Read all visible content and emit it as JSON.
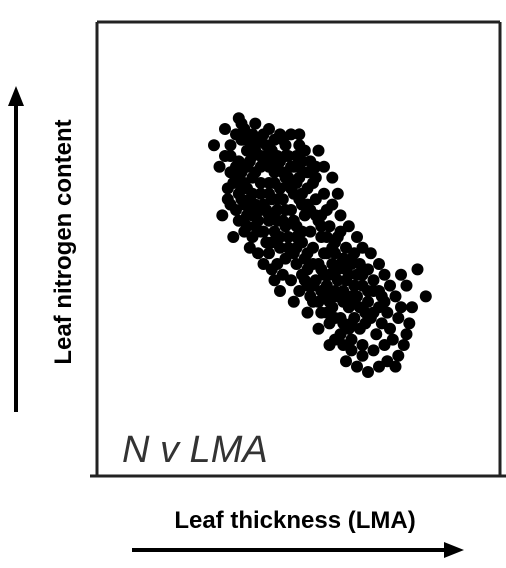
{
  "chart_data": {
    "type": "scatter",
    "title": "",
    "annotation": "N v LMA",
    "xlabel": "Leaf thickness (LMA)",
    "ylabel": "Leaf nitrogen content",
    "xlim": [
      0,
      100
    ],
    "ylim": [
      0,
      100
    ],
    "grid": false,
    "legend": "none",
    "point_color": "#000000",
    "series": [
      {
        "points": [
          [
            20,
            80
          ],
          [
            22,
            84
          ],
          [
            24,
            88
          ],
          [
            26,
            86
          ],
          [
            27,
            90
          ],
          [
            30,
            88
          ],
          [
            28,
            82
          ],
          [
            25,
            78
          ],
          [
            22,
            74
          ],
          [
            24,
            72
          ],
          [
            28,
            76
          ],
          [
            30,
            80
          ],
          [
            32,
            85
          ],
          [
            34,
            88
          ],
          [
            36,
            90
          ],
          [
            38,
            86
          ],
          [
            40,
            88
          ],
          [
            42,
            84
          ],
          [
            35,
            80
          ],
          [
            33,
            76
          ],
          [
            30,
            72
          ],
          [
            28,
            68
          ],
          [
            26,
            64
          ],
          [
            24,
            60
          ],
          [
            22,
            62
          ],
          [
            25,
            56
          ],
          [
            28,
            58
          ],
          [
            31,
            62
          ],
          [
            33,
            66
          ],
          [
            36,
            70
          ],
          [
            38,
            74
          ],
          [
            40,
            78
          ],
          [
            43,
            80
          ],
          [
            45,
            76
          ],
          [
            47,
            72
          ],
          [
            44,
            68
          ],
          [
            41,
            64
          ],
          [
            39,
            60
          ],
          [
            36,
            56
          ],
          [
            33,
            52
          ],
          [
            30,
            50
          ],
          [
            35,
            48
          ],
          [
            38,
            52
          ],
          [
            41,
            56
          ],
          [
            44,
            60
          ],
          [
            47,
            64
          ],
          [
            50,
            68
          ],
          [
            52,
            70
          ],
          [
            49,
            58
          ],
          [
            46,
            54
          ],
          [
            43,
            50
          ],
          [
            40,
            46
          ],
          [
            45,
            44
          ],
          [
            48,
            48
          ],
          [
            51,
            52
          ],
          [
            54,
            56
          ],
          [
            57,
            60
          ],
          [
            55,
            50
          ],
          [
            52,
            46
          ],
          [
            49,
            42
          ],
          [
            54,
            40
          ],
          [
            57,
            44
          ],
          [
            60,
            48
          ],
          [
            62,
            52
          ],
          [
            59,
            40
          ],
          [
            56,
            36
          ],
          [
            61,
            34
          ],
          [
            64,
            38
          ],
          [
            66,
            42
          ],
          [
            63,
            30
          ],
          [
            67,
            32
          ],
          [
            70,
            36
          ],
          [
            68,
            28
          ],
          [
            72,
            26
          ],
          [
            74,
            30
          ],
          [
            71,
            22
          ],
          [
            65,
            24
          ],
          [
            60,
            30
          ],
          [
            58,
            26
          ],
          [
            62,
            20
          ],
          [
            66,
            18
          ],
          [
            69,
            16
          ],
          [
            73,
            20
          ],
          [
            76,
            24
          ],
          [
            77,
            18
          ],
          [
            75,
            14
          ],
          [
            70,
            10
          ],
          [
            66,
            12
          ],
          [
            62,
            14
          ],
          [
            58,
            18
          ],
          [
            55,
            22
          ],
          [
            52,
            26
          ],
          [
            50,
            32
          ],
          [
            48,
            36
          ],
          [
            46,
            40
          ],
          [
            42,
            42
          ],
          [
            39,
            40
          ],
          [
            36,
            44
          ],
          [
            34,
            40
          ],
          [
            57,
            32
          ],
          [
            53,
            34
          ],
          [
            50,
            38
          ],
          [
            47,
            30
          ],
          [
            44,
            34
          ],
          [
            41,
            36
          ],
          [
            38,
            34
          ],
          [
            32,
            44
          ],
          [
            29,
            46
          ],
          [
            27,
            52
          ],
          [
            35,
            60
          ],
          [
            37,
            64
          ],
          [
            42,
            72
          ],
          [
            44,
            76
          ],
          [
            46,
            80
          ],
          [
            48,
            78
          ],
          [
            40,
            68
          ],
          [
            32,
            56
          ],
          [
            29,
            60
          ],
          [
            27,
            70
          ],
          [
            31,
            74
          ],
          [
            34,
            78
          ],
          [
            37,
            82
          ],
          [
            39,
            76
          ],
          [
            43,
            72
          ],
          [
            45,
            66
          ],
          [
            48,
            62
          ],
          [
            51,
            60
          ],
          [
            53,
            64
          ],
          [
            55,
            58
          ],
          [
            58,
            54
          ],
          [
            61,
            50
          ],
          [
            64,
            46
          ],
          [
            67,
            44
          ],
          [
            69,
            40
          ],
          [
            72,
            38
          ],
          [
            74,
            34
          ],
          [
            76,
            30
          ],
          [
            78,
            26
          ],
          [
            79,
            22
          ],
          [
            80,
            16
          ],
          [
            81,
            12
          ],
          [
            78,
            10
          ],
          [
            74,
            8
          ],
          [
            70,
            6
          ],
          [
            66,
            8
          ],
          [
            63,
            10
          ],
          [
            60,
            12
          ],
          [
            83,
            20
          ],
          [
            86,
            14
          ],
          [
            85,
            10
          ],
          [
            83,
            6
          ],
          [
            82,
            2
          ],
          [
            79,
            4
          ],
          [
            76,
            2
          ],
          [
            88,
            24
          ],
          [
            82,
            28
          ],
          [
            80,
            32
          ],
          [
            78,
            36
          ],
          [
            76,
            40
          ],
          [
            73,
            44
          ],
          [
            70,
            46
          ],
          [
            68,
            50
          ],
          [
            65,
            54
          ],
          [
            62,
            58
          ],
          [
            59,
            62
          ],
          [
            56,
            66
          ],
          [
            53,
            72
          ],
          [
            50,
            74
          ],
          [
            47,
            76
          ],
          [
            26,
            92
          ],
          [
            21,
            68
          ],
          [
            19,
            58
          ],
          [
            23,
            50
          ],
          [
            37,
            38
          ],
          [
            40,
            30
          ],
          [
            45,
            26
          ],
          [
            50,
            22
          ],
          [
            54,
            16
          ],
          [
            58,
            10
          ],
          [
            64,
            4
          ],
          [
            68,
            2
          ],
          [
            72,
            0
          ],
          [
            90,
            38
          ],
          [
            93,
            28
          ],
          [
            86,
            32
          ],
          [
            84,
            36
          ],
          [
            59,
            72
          ],
          [
            61,
            66
          ],
          [
            56,
            76
          ],
          [
            54,
            82
          ],
          [
            31,
            92
          ],
          [
            25,
            94
          ],
          [
            20,
            90
          ],
          [
            18,
            76
          ],
          [
            16,
            84
          ],
          [
            84,
            24
          ],
          [
            87,
            18
          ],
          [
            62,
            40
          ],
          [
            65,
            36
          ],
          [
            67,
            26
          ],
          [
            52,
            40
          ],
          [
            56,
            44
          ],
          [
            59,
            46
          ],
          [
            48,
            52
          ],
          [
            45,
            56
          ],
          [
            42,
            60
          ],
          [
            39,
            64
          ],
          [
            36,
            66
          ],
          [
            33,
            70
          ],
          [
            30,
            66
          ],
          [
            27,
            62
          ],
          [
            25,
            66
          ],
          [
            23,
            70
          ],
          [
            21,
            64
          ],
          [
            26,
            74
          ],
          [
            29,
            78
          ],
          [
            31,
            82
          ],
          [
            33,
            86
          ],
          [
            35,
            84
          ],
          [
            37,
            78
          ],
          [
            39,
            80
          ],
          [
            41,
            74
          ],
          [
            43,
            70
          ],
          [
            46,
            70
          ],
          [
            48,
            66
          ],
          [
            50,
            62
          ],
          [
            53,
            58
          ],
          [
            55,
            54
          ],
          [
            57,
            50
          ],
          [
            60,
            44
          ],
          [
            63,
            42
          ],
          [
            66,
            40
          ],
          [
            68,
            36
          ],
          [
            70,
            32
          ],
          [
            72,
            30
          ],
          [
            69,
            24
          ],
          [
            66,
            28
          ],
          [
            63,
            26
          ],
          [
            61,
            28
          ],
          [
            59,
            24
          ],
          [
            57,
            28
          ],
          [
            55,
            30
          ],
          [
            52,
            32
          ],
          [
            49,
            34
          ],
          [
            46,
            46
          ],
          [
            43,
            46
          ],
          [
            40,
            50
          ],
          [
            37,
            48
          ],
          [
            34,
            52
          ],
          [
            31,
            54
          ],
          [
            28,
            54
          ],
          [
            41,
            86
          ],
          [
            44,
            88
          ],
          [
            47,
            84
          ],
          [
            49,
            82
          ],
          [
            51,
            78
          ],
          [
            53,
            76
          ],
          [
            47,
            88
          ],
          [
            42,
            80
          ],
          [
            38,
            70
          ],
          [
            34,
            62
          ],
          [
            30,
            58
          ],
          [
            58,
            36
          ],
          [
            61,
            38
          ],
          [
            64,
            34
          ],
          [
            67,
            20
          ],
          [
            71,
            18
          ],
          [
            74,
            22
          ],
          [
            77,
            28
          ],
          [
            65,
            16
          ],
          [
            63,
            18
          ],
          [
            60,
            20
          ],
          [
            57,
            22
          ],
          [
            54,
            26
          ],
          [
            51,
            28
          ],
          [
            55,
            38
          ],
          [
            50,
            44
          ],
          [
            46,
            50
          ],
          [
            42,
            54
          ],
          [
            39,
            56
          ],
          [
            36,
            58
          ],
          [
            33,
            60
          ],
          [
            29,
            64
          ],
          [
            26,
            68
          ],
          [
            24,
            76
          ],
          [
            22,
            80
          ],
          [
            28,
            86
          ],
          [
            30,
            84
          ],
          [
            33,
            80
          ],
          [
            36,
            76
          ]
        ]
      }
    ]
  }
}
